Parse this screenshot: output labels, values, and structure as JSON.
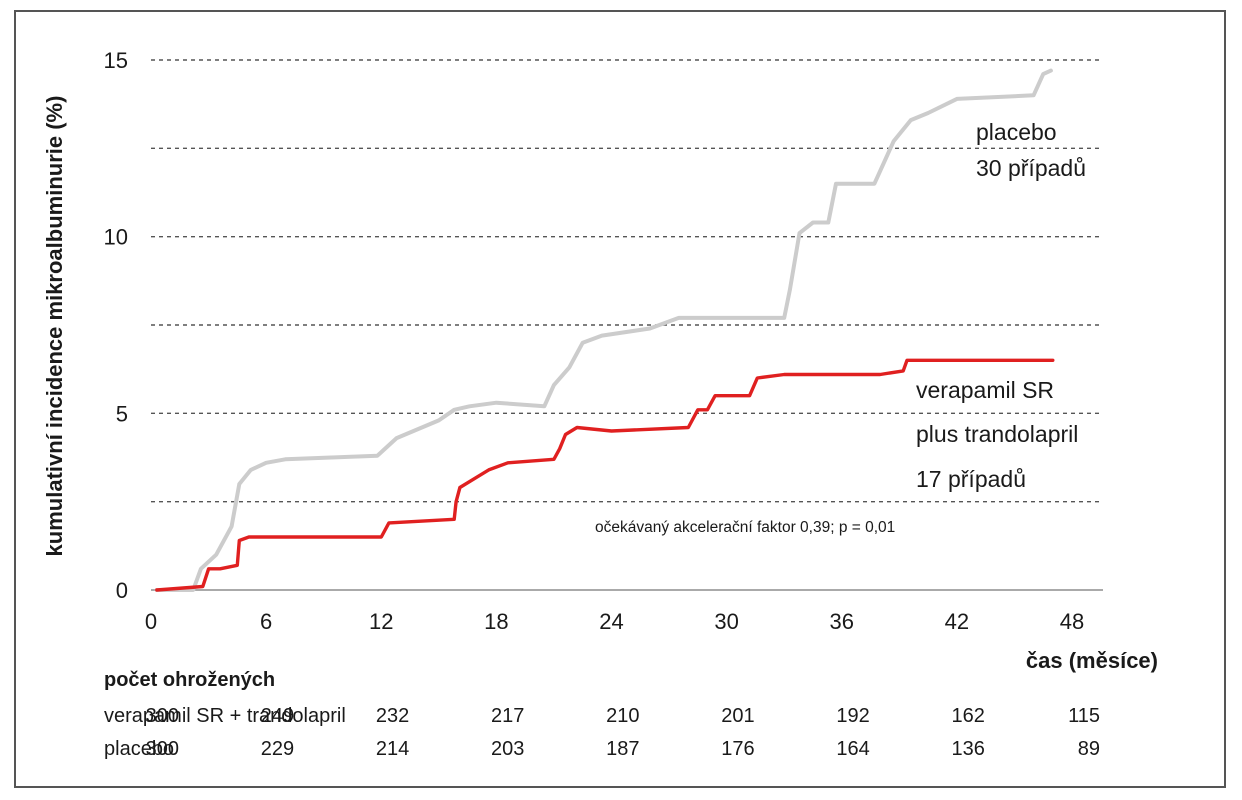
{
  "chart_data": {
    "type": "line",
    "ylabel": "kumulativní incidence mikroalbuminurie (%)",
    "xlabel": "čas (měsíce)",
    "xlim": [
      0,
      48
    ],
    "ylim": [
      0,
      15
    ],
    "xticks": [
      0,
      6,
      12,
      18,
      24,
      30,
      36,
      42,
      48
    ],
    "yticks": [
      0,
      5,
      10,
      15
    ],
    "grid": "dashed horizontal at 2.5, 5, 7.5, 10, 12.5, 15",
    "series": [
      {
        "name": "placebo",
        "color": "#cccccc",
        "points": [
          [
            0.3,
            0
          ],
          [
            2.2,
            0
          ],
          [
            2.6,
            0.6
          ],
          [
            3.4,
            1.0
          ],
          [
            4.2,
            1.8
          ],
          [
            4.6,
            3.0
          ],
          [
            5.2,
            3.4
          ],
          [
            6.0,
            3.6
          ],
          [
            7.0,
            3.7
          ],
          [
            11.8,
            3.8
          ],
          [
            12.8,
            4.3
          ],
          [
            15.0,
            4.8
          ],
          [
            15.8,
            5.1
          ],
          [
            16.6,
            5.2
          ],
          [
            18.0,
            5.3
          ],
          [
            20.5,
            5.2
          ],
          [
            21.0,
            5.8
          ],
          [
            21.8,
            6.3
          ],
          [
            22.5,
            7.0
          ],
          [
            23.5,
            7.2
          ],
          [
            26.0,
            7.4
          ],
          [
            27.5,
            7.7
          ],
          [
            33.0,
            7.7
          ],
          [
            33.3,
            8.5
          ],
          [
            33.8,
            10.1
          ],
          [
            34.5,
            10.4
          ],
          [
            35.3,
            10.4
          ],
          [
            35.7,
            11.5
          ],
          [
            37.7,
            11.5
          ],
          [
            38.7,
            12.7
          ],
          [
            39.6,
            13.3
          ],
          [
            40.5,
            13.5
          ],
          [
            42.0,
            13.9
          ],
          [
            46.0,
            14.0
          ],
          [
            46.5,
            14.6
          ],
          [
            46.9,
            14.7
          ]
        ]
      },
      {
        "name": "verapamil SR plus trandolapril",
        "color": "#e02020",
        "points": [
          [
            0.3,
            0
          ],
          [
            2.7,
            0.1
          ],
          [
            3.0,
            0.6
          ],
          [
            3.6,
            0.6
          ],
          [
            4.5,
            0.7
          ],
          [
            4.6,
            1.4
          ],
          [
            5.1,
            1.5
          ],
          [
            8.0,
            1.5
          ],
          [
            12.0,
            1.5
          ],
          [
            12.4,
            1.9
          ],
          [
            15.8,
            2.0
          ],
          [
            15.9,
            2.5
          ],
          [
            16.1,
            2.9
          ],
          [
            17.0,
            3.2
          ],
          [
            17.6,
            3.4
          ],
          [
            18.6,
            3.6
          ],
          [
            21.0,
            3.7
          ],
          [
            21.3,
            4.0
          ],
          [
            21.6,
            4.4
          ],
          [
            22.2,
            4.6
          ],
          [
            24.0,
            4.5
          ],
          [
            28.0,
            4.6
          ],
          [
            28.5,
            5.1
          ],
          [
            29.0,
            5.1
          ],
          [
            29.4,
            5.5
          ],
          [
            31.2,
            5.5
          ],
          [
            31.6,
            6.0
          ],
          [
            33.0,
            6.1
          ],
          [
            38.0,
            6.1
          ],
          [
            39.2,
            6.2
          ],
          [
            39.4,
            6.5
          ],
          [
            42.0,
            6.5
          ],
          [
            47.0,
            6.5
          ]
        ]
      }
    ]
  },
  "annotations": {
    "placebo_name": "placebo",
    "placebo_cases": "30 případů",
    "treat_line1": "verapamil SR",
    "treat_line2": "plus trandolapril",
    "treat_cases": "17 případů",
    "note": "očekávaný akcelerační faktor 0,39; p = 0,01"
  },
  "at_risk": {
    "title": "počet ohrožených",
    "rows": [
      {
        "label": "verapamil SR + trandolapril",
        "values": [
          300,
          249,
          232,
          217,
          210,
          201,
          192,
          162,
          115
        ]
      },
      {
        "label": "placebo",
        "values": [
          300,
          229,
          214,
          203,
          187,
          176,
          164,
          136,
          89
        ]
      }
    ]
  }
}
